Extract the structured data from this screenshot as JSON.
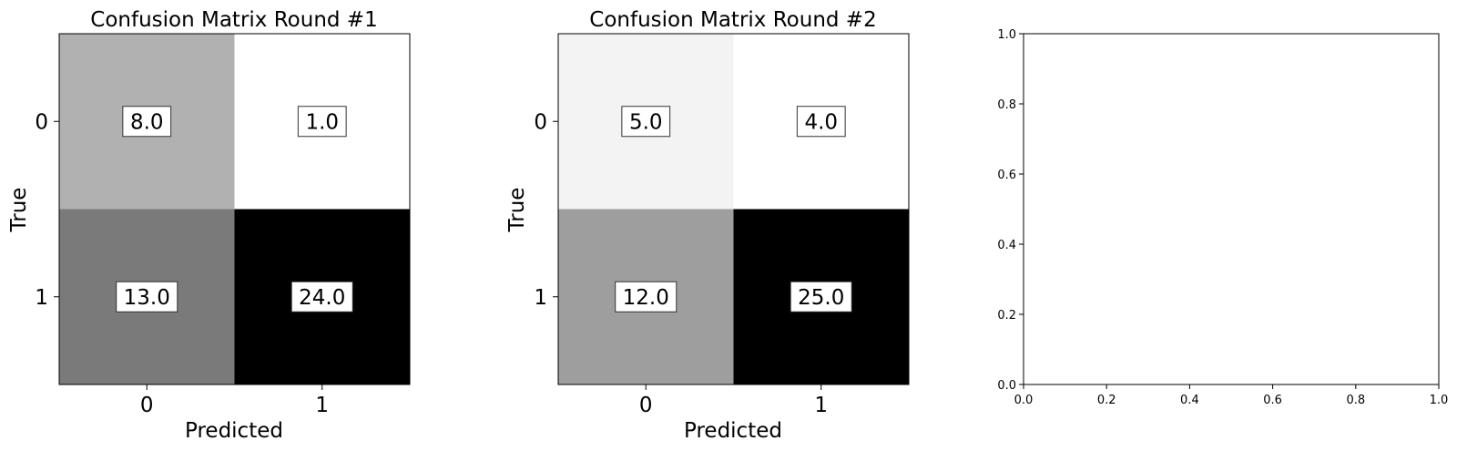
{
  "chart_data": [
    {
      "type": "heatmap",
      "title": "Confusion Matrix Round #1",
      "xlabel": "Predicted",
      "ylabel": "True",
      "x_categories": [
        "0",
        "1"
      ],
      "y_categories": [
        "0",
        "1"
      ],
      "values": [
        [
          8.0,
          1.0
        ],
        [
          13.0,
          24.0
        ]
      ],
      "cell_labels": [
        [
          "8.0",
          "1.0"
        ],
        [
          "13.0",
          "24.0"
        ]
      ],
      "colormap": "Greys"
    },
    {
      "type": "heatmap",
      "title": "Confusion Matrix Round #2",
      "xlabel": "Predicted",
      "ylabel": "True",
      "x_categories": [
        "0",
        "1"
      ],
      "y_categories": [
        "0",
        "1"
      ],
      "values": [
        [
          5.0,
          4.0
        ],
        [
          12.0,
          25.0
        ]
      ],
      "cell_labels": [
        [
          "5.0",
          "4.0"
        ],
        [
          "12.0",
          "25.0"
        ]
      ],
      "colormap": "Greys"
    },
    {
      "type": "scatter",
      "title": "",
      "xlabel": "",
      "ylabel": "",
      "xlim": [
        0.0,
        1.0
      ],
      "ylim": [
        0.0,
        1.0
      ],
      "xticks": [
        "0.0",
        "0.2",
        "0.4",
        "0.6",
        "0.8",
        "1.0"
      ],
      "yticks": [
        "0.0",
        "0.2",
        "0.4",
        "0.6",
        "0.8",
        "1.0"
      ],
      "series": []
    }
  ]
}
